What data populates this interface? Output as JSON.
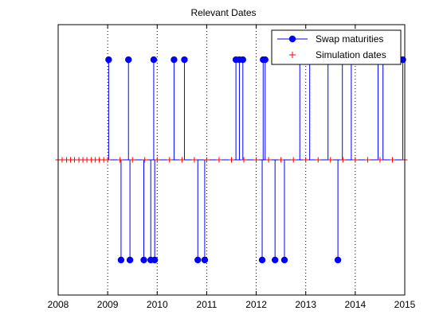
{
  "chart_data": {
    "type": "stem",
    "title": "Relevant Dates",
    "xlabel": "",
    "ylabel": "",
    "xlim": [
      2008,
      2015
    ],
    "ylim": [
      -1.35,
      1.35
    ],
    "x_ticks": [
      "2008",
      "2009",
      "2010",
      "2011",
      "2012",
      "2013",
      "2014",
      "2015"
    ],
    "x_grid": "dotted vertical at each year",
    "legend": {
      "placement": "top-right",
      "entries": [
        {
          "name": "Swap maturities",
          "marker": "filled-circle-line",
          "color": "#0000ff"
        },
        {
          "name": "Simulation dates",
          "marker": "plus",
          "color": "#ff0000"
        }
      ]
    },
    "series": [
      {
        "name": "Swap maturities",
        "color": "#0000ff",
        "x": [
          2009.02,
          2009.27,
          2009.42,
          2009.45,
          2009.73,
          2009.87,
          2009.93,
          2009.95,
          2010.34,
          2010.55,
          2010.82,
          2010.96,
          2011.59,
          2011.66,
          2011.73,
          2012.12,
          2012.14,
          2012.18,
          2012.38,
          2012.57,
          2012.88,
          2013.08,
          2013.45,
          2013.65,
          2013.74,
          2013.92,
          2014.46,
          2014.56,
          2014.96
        ],
        "y": [
          1,
          -1,
          1,
          -1,
          -1,
          -1,
          1,
          -1,
          1,
          1,
          -1,
          -1,
          1,
          1,
          1,
          -1,
          1,
          1,
          -1,
          -1,
          1,
          1,
          1,
          -1,
          1,
          1,
          1,
          1,
          1
        ]
      },
      {
        "name": "Simulation dates",
        "color": "#ff0000",
        "x": [
          2008.0,
          2008.08,
          2008.17,
          2008.25,
          2008.33,
          2008.42,
          2008.5,
          2008.58,
          2008.67,
          2008.75,
          2008.83,
          2008.92,
          2009.0,
          2009.25,
          2009.5,
          2009.75,
          2010.0,
          2010.25,
          2010.5,
          2010.75,
          2011.0,
          2011.25,
          2011.5,
          2011.75,
          2012.0,
          2012.25,
          2012.5,
          2012.75,
          2013.0,
          2013.25,
          2013.5,
          2013.75,
          2014.0,
          2014.25,
          2014.5,
          2014.75,
          2015.0
        ],
        "y": 0
      }
    ]
  },
  "colors": {
    "stem": "#0000ff",
    "simulation": "#ff0000",
    "axes": "#000000"
  }
}
